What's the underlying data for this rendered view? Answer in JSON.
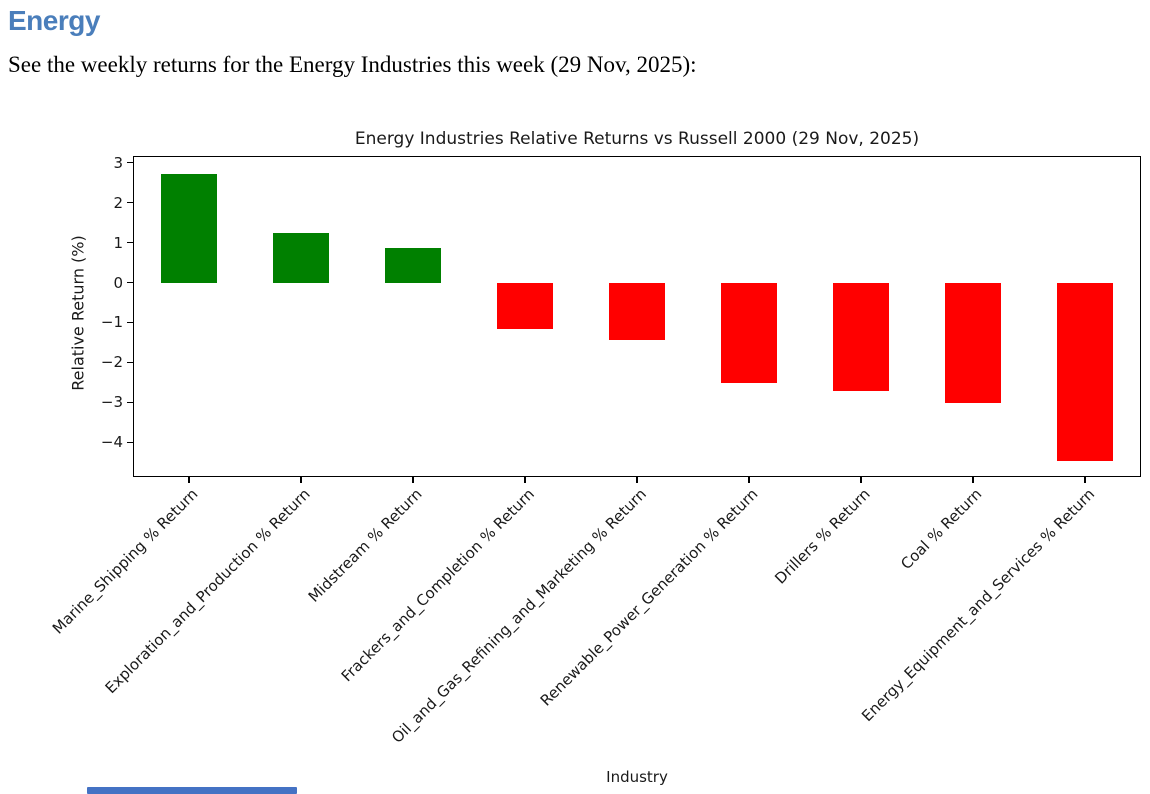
{
  "page": {
    "heading": "Energy",
    "heading_color": "#4A7EBB",
    "intro": "See the weekly returns for the Energy Industries this week (29 Nov, 2025):"
  },
  "scrollbar": {
    "visible": true,
    "color": "#4472C4"
  },
  "chart_data": {
    "type": "bar",
    "title": "Energy Industries Relative Returns vs Russell 2000 (29 Nov, 2025)",
    "xlabel": "Industry",
    "ylabel": "Relative Return (%)",
    "categories": [
      "Marine_Shipping % Return",
      "Exploration_and_Production % Return",
      "Midstream % Return",
      "Frackers_and_Completion % Return",
      "Oil_and_Gas_Refining_and_Marketing % Return",
      "Renewable_Power_Generation % Return",
      "Drillers % Return",
      "Coal % Return",
      "Energy_Equipment_and_Services % Return"
    ],
    "values": [
      2.72,
      1.24,
      0.86,
      -1.17,
      -1.43,
      -2.52,
      -2.72,
      -3.02,
      -4.47
    ],
    "positive_color": "#008000",
    "negative_color": "#FF0000",
    "yticks": [
      3,
      2,
      1,
      0,
      -1,
      -2,
      -3,
      -4
    ],
    "ylim": [
      -4.87,
      3.17
    ],
    "grid": false,
    "legend": null,
    "bar_width_fraction": 0.5,
    "x_tick_rotation_deg": 45
  }
}
